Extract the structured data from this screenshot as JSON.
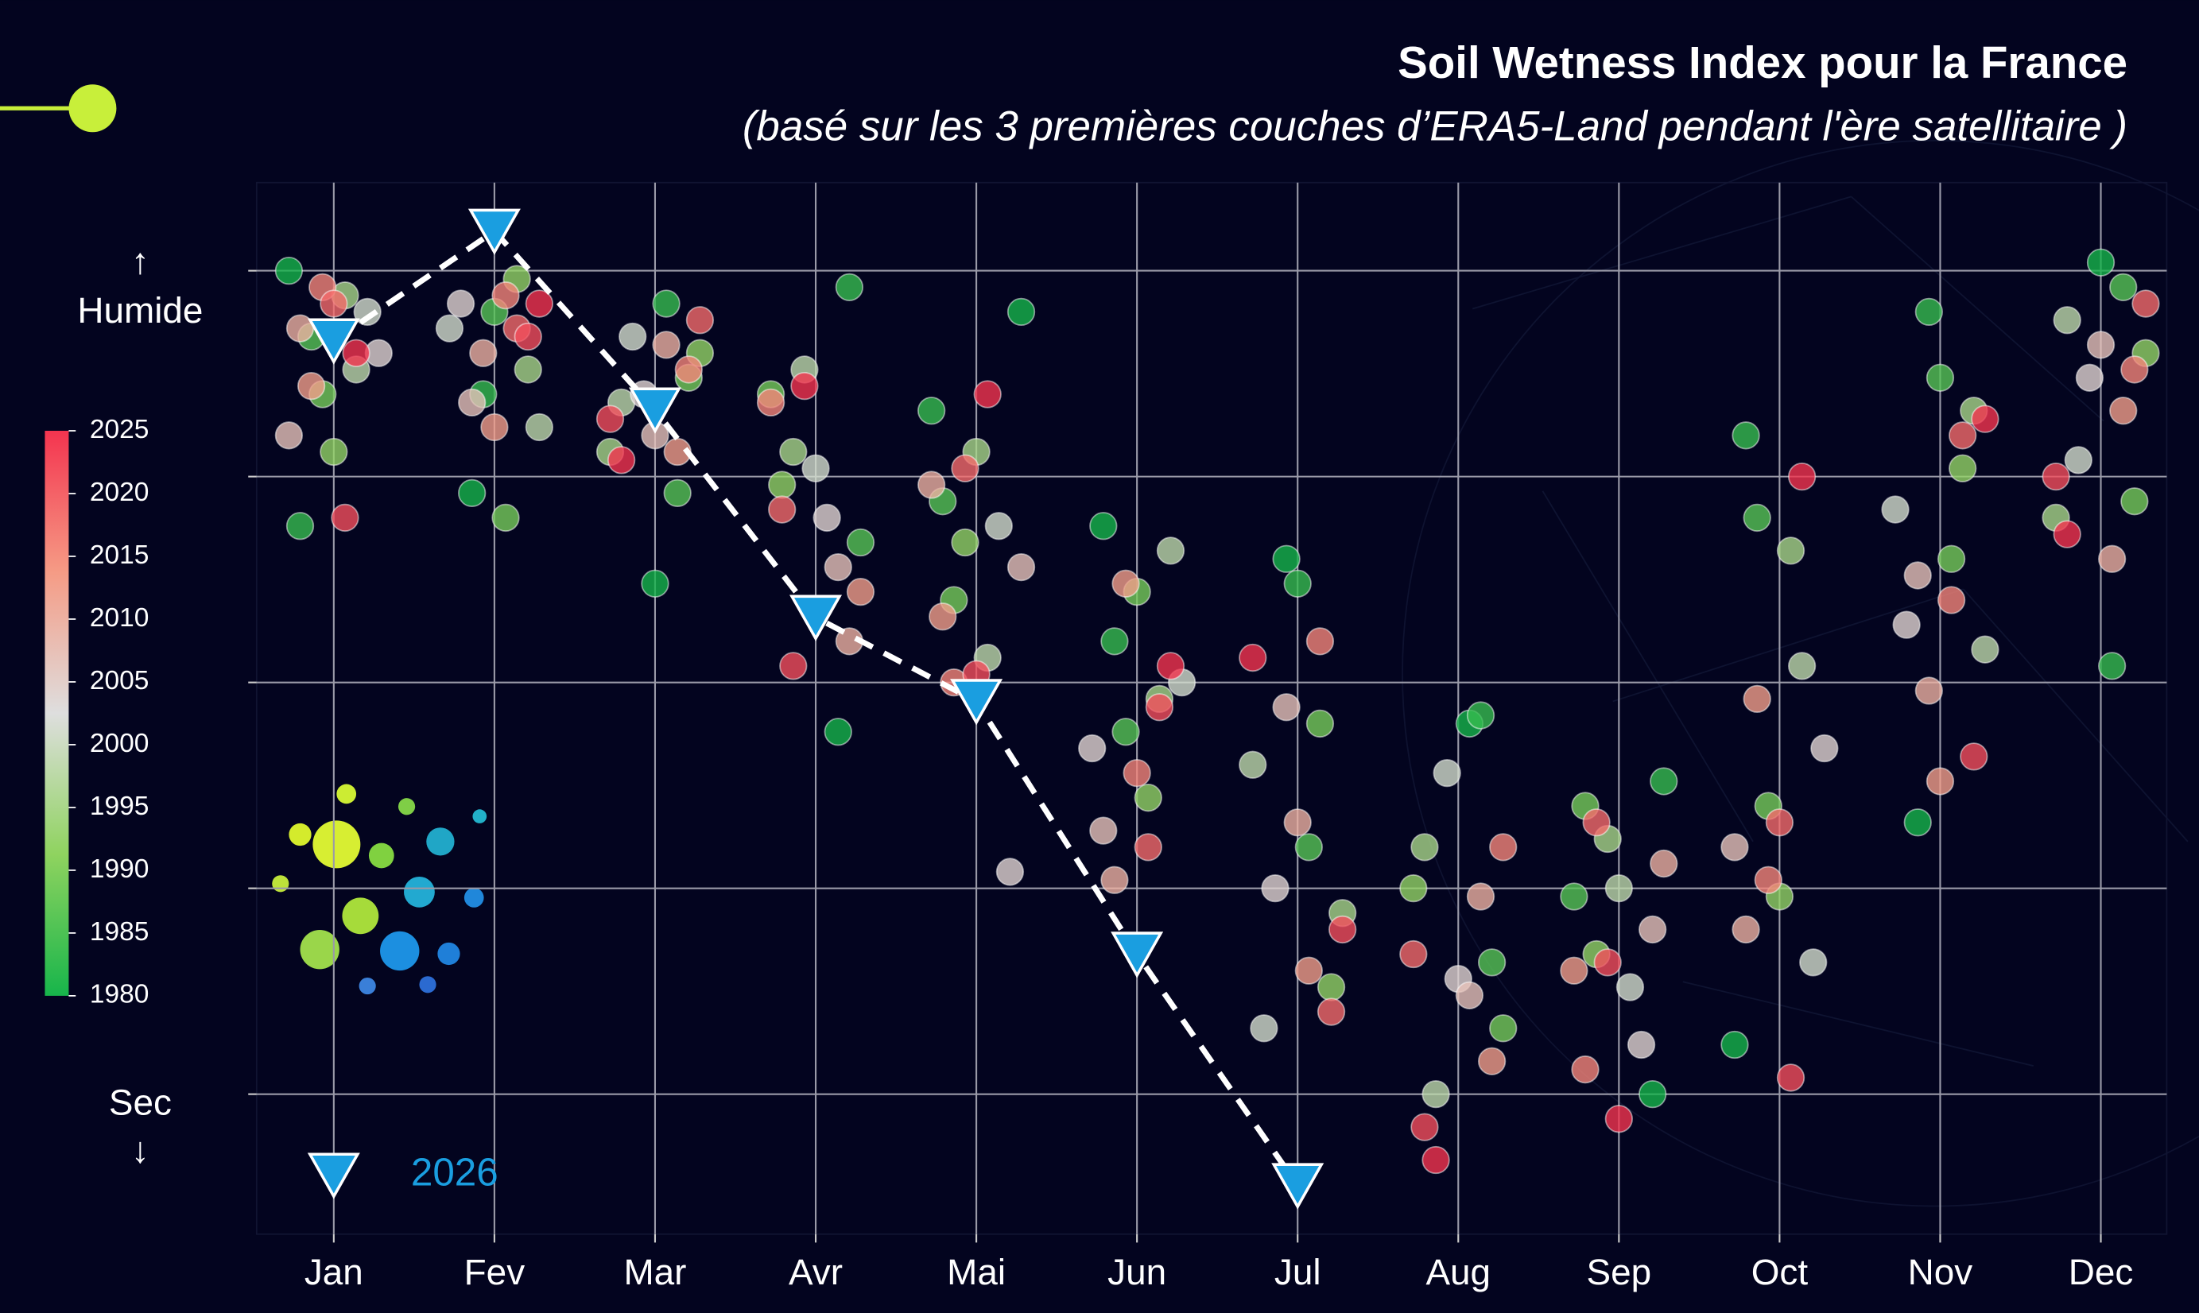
{
  "chart_data": {
    "type": "scatter",
    "title": "Soil Wetness Index pour la France",
    "subtitle": "(basé sur les 3 premières couches d’ERA5-Land pendant l'ère satellitaire )",
    "y_label_top": "↑ Humide",
    "y_label_bottom": "Sec ↓",
    "categories": [
      "Jan",
      "Fev",
      "Mar",
      "Avr",
      "Mai",
      "Jun",
      "Jul",
      "Aug",
      "Sep",
      "Oct",
      "Nov",
      "Dec"
    ],
    "ylim": [
      -0.17,
      1.107
    ],
    "ygrid": [
      0,
      0.25,
      0.5,
      0.75,
      1
    ],
    "grid": true,
    "years": [
      1980,
      1983,
      1986,
      1989,
      1992,
      1995,
      1998,
      2001,
      2004,
      2007,
      2010,
      2013,
      2016,
      2019,
      2022,
      2025
    ],
    "monthly_values": [
      [
        1.0,
        0.69,
        0.92,
        0.85,
        0.78,
        0.97,
        0.88,
        0.95,
        0.9,
        0.8,
        0.93,
        0.86,
        0.98,
        0.96,
        0.7,
        0.9
      ],
      [
        0.73,
        0.85,
        0.95,
        0.7,
        0.99,
        0.88,
        0.81,
        0.93,
        0.96,
        0.84,
        0.9,
        0.81,
        0.97,
        0.93,
        0.92,
        0.96
      ],
      [
        0.62,
        0.96,
        0.73,
        0.87,
        0.9,
        0.78,
        0.84,
        0.92,
        0.85,
        0.8,
        0.91,
        0.78,
        0.88,
        0.94,
        0.82,
        0.77
      ],
      [
        0.44,
        0.98,
        0.67,
        0.85,
        0.74,
        0.78,
        0.88,
        0.76,
        0.7,
        0.64,
        0.55,
        0.61,
        0.84,
        0.71,
        0.52,
        0.86
      ],
      [
        0.95,
        0.83,
        0.72,
        0.6,
        0.67,
        0.78,
        0.53,
        0.69,
        0.27,
        0.64,
        0.74,
        0.58,
        0.5,
        0.76,
        0.51,
        0.85
      ],
      [
        0.69,
        0.55,
        0.44,
        0.61,
        0.36,
        0.48,
        0.66,
        0.5,
        0.42,
        0.32,
        0.26,
        0.62,
        0.39,
        0.3,
        0.47,
        0.52
      ],
      [
        0.65,
        0.62,
        0.3,
        0.45,
        0.13,
        0.22,
        0.4,
        0.08,
        0.25,
        0.47,
        0.33,
        0.15,
        0.55,
        0.1,
        0.2,
        0.53
      ],
      [
        0.45,
        0.46,
        0.16,
        0.08,
        0.25,
        0.3,
        0.0,
        0.39,
        0.14,
        0.12,
        0.24,
        0.04,
        0.3,
        0.17,
        -0.04,
        -0.08
      ],
      [
        0.0,
        0.38,
        0.24,
        0.35,
        0.17,
        0.31,
        0.25,
        0.13,
        0.06,
        0.2,
        0.28,
        0.15,
        0.03,
        0.33,
        0.16,
        -0.03
      ],
      [
        0.06,
        0.8,
        0.7,
        0.35,
        0.24,
        0.66,
        0.52,
        0.16,
        0.42,
        0.3,
        0.2,
        0.48,
        0.26,
        0.33,
        0.02,
        0.75
      ],
      [
        0.33,
        0.95,
        0.87,
        0.65,
        0.76,
        0.83,
        0.54,
        0.71,
        0.57,
        0.63,
        0.49,
        0.38,
        0.6,
        0.8,
        0.41,
        0.82
      ],
      [
        1.01,
        0.52,
        0.98,
        0.72,
        0.9,
        0.7,
        0.94,
        0.77,
        0.87,
        0.91,
        0.65,
        0.83,
        0.88,
        0.96,
        0.75,
        0.68
      ]
    ],
    "colorbar": {
      "lim": [
        1980,
        2025
      ],
      "ticks": [
        1980,
        1985,
        1990,
        1995,
        2000,
        2005,
        2010,
        2015,
        2020,
        2025
      ],
      "colors": [
        "#17b54b",
        "#8fd35f",
        "#dedede",
        "#f59b85",
        "#f4344f"
      ]
    },
    "series": [
      {
        "name": "2026",
        "color": "#1a9ee0",
        "values": [
          0.915,
          1.048,
          0.831,
          0.579,
          0.477,
          0.17,
          -0.111
        ]
      }
    ]
  }
}
